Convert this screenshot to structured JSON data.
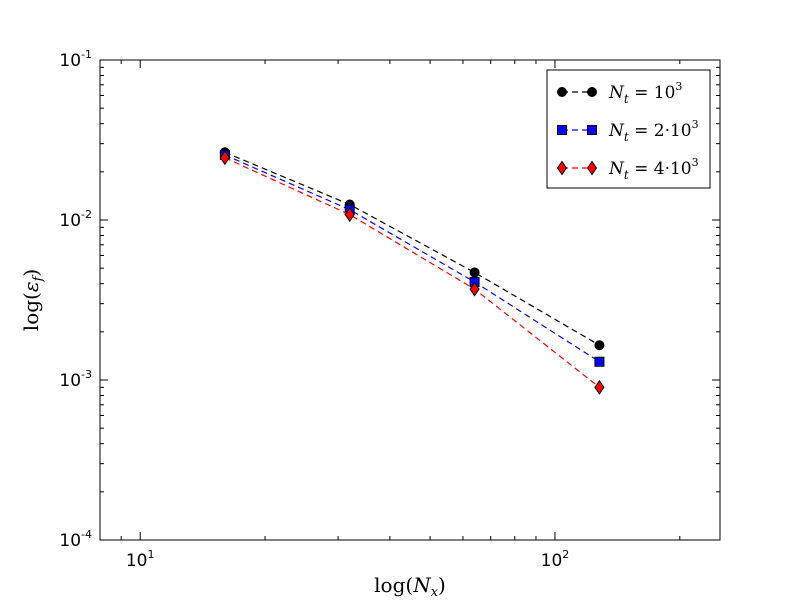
{
  "chart_data": {
    "type": "line",
    "xscale": "log",
    "yscale": "log",
    "xlim": [
      8,
      250
    ],
    "ylim": [
      0.0001,
      0.1
    ],
    "xlabel": "log(N_x)",
    "ylabel": "log(ε_f)",
    "x_ticks": [
      {
        "value": 10,
        "base": "10",
        "exp": "1"
      },
      {
        "value": 100,
        "base": "10",
        "exp": "2"
      }
    ],
    "y_ticks": [
      {
        "value": 0.0001,
        "base": "10",
        "exp": "-4"
      },
      {
        "value": 0.001,
        "base": "10",
        "exp": "-3"
      },
      {
        "value": 0.01,
        "base": "10",
        "exp": "-2"
      },
      {
        "value": 0.1,
        "base": "10",
        "exp": "-1"
      }
    ],
    "x": [
      16,
      32,
      64,
      128
    ],
    "series": [
      {
        "name": "N_t = 10^3",
        "label_main": "N",
        "label_sub": "t",
        "label_mid": " = 10",
        "label_exp": "3",
        "color": "#000000",
        "marker": "circle",
        "values": [
          0.0265,
          0.0125,
          0.0047,
          0.00165
        ]
      },
      {
        "name": "N_t = 2·10^3",
        "label_main": "N",
        "label_sub": "t",
        "label_mid": " = 2·10",
        "label_exp": "3",
        "color": "#0000ff",
        "marker": "square",
        "values": [
          0.0255,
          0.0116,
          0.0041,
          0.0013
        ]
      },
      {
        "name": "N_t = 4·10^3",
        "label_main": "N",
        "label_sub": "t",
        "label_mid": " = 4·10",
        "label_exp": "3",
        "color": "#ff0000",
        "marker": "diamond",
        "values": [
          0.0245,
          0.0108,
          0.0037,
          0.0009
        ]
      }
    ],
    "legend_position": "top-right",
    "grid": false
  },
  "labels": {
    "x_main": "log(",
    "x_var": "N",
    "x_sub": "x",
    "x_close": ")",
    "y_main": "log(",
    "y_var": "ε",
    "y_sub": "f",
    "y_close": ")"
  }
}
